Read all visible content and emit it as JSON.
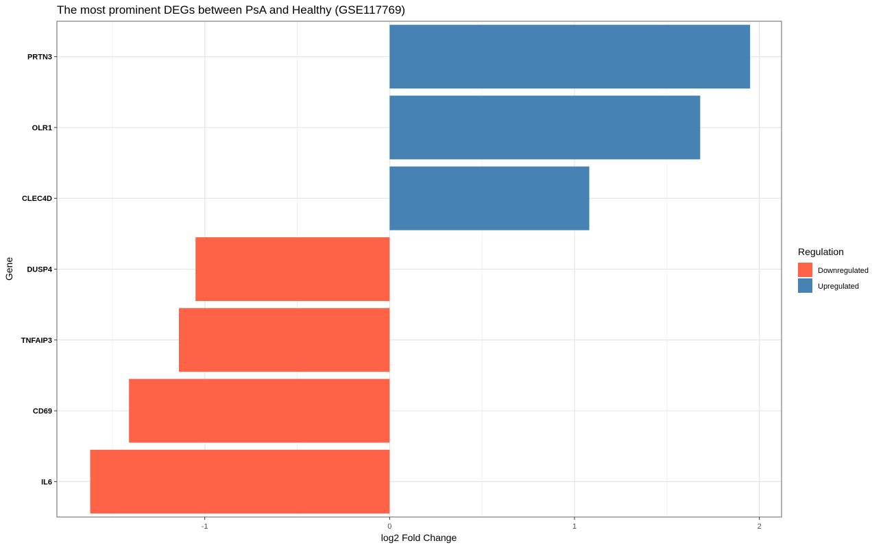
{
  "chart_data": {
    "type": "bar",
    "orientation": "horizontal",
    "title": "The most prominent DEGs between PsA and Healthy (GSE117769)",
    "xlabel": "log2 Fold Change",
    "ylabel": "Gene",
    "xlim": [
      -1.8,
      2.12
    ],
    "xticks": [
      -1,
      0,
      1,
      2
    ],
    "xtick_labels": [
      "-1",
      "0",
      "1",
      "2"
    ],
    "grid": true,
    "legend_position": "right",
    "legend": {
      "title": "Regulation",
      "entries": [
        {
          "label": "Downregulated",
          "color": "#FF6347"
        },
        {
          "label": "Upregulated",
          "color": "#4682B4"
        }
      ]
    },
    "categories": [
      "PRTN3",
      "OLR1",
      "CLEC4D",
      "DUSP4",
      "TNFAIP3",
      "CD69",
      "IL6"
    ],
    "values": [
      1.95,
      1.68,
      1.08,
      -1.05,
      -1.14,
      -1.41,
      -1.62
    ],
    "regulation": [
      "Upregulated",
      "Upregulated",
      "Upregulated",
      "Downregulated",
      "Downregulated",
      "Downregulated",
      "Downregulated"
    ]
  }
}
